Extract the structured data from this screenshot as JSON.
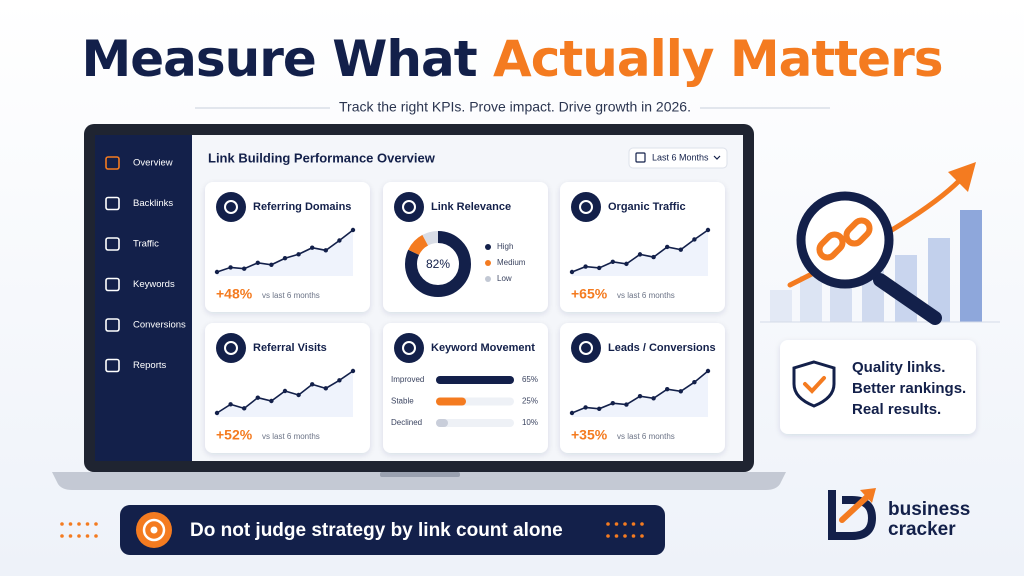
{
  "header": {
    "title_dark": "Measure What",
    "title_orange": "Actually Matters",
    "subtitle": "Track the right KPIs. Prove impact. Drive growth in 2026."
  },
  "sidebar": [
    "Overview",
    "Backlinks",
    "Traffic",
    "Keywords",
    "Conversions",
    "Reports"
  ],
  "dashboard": {
    "title": "Link Building Performance Overview",
    "date_filter": "Last 6 Months",
    "cards": [
      {
        "title": "Referring Domains",
        "change": "+48%",
        "note": "vs last 6 months",
        "sparkline": [
          20,
          27,
          25,
          34,
          31,
          41,
          47,
          57,
          53,
          68,
          84
        ]
      },
      {
        "title": "Link Relevance",
        "donut": {
          "labels": [
            "High",
            "Medium",
            "Low"
          ],
          "colors": [
            "#13204a",
            "#f47b20",
            "#d9dde6"
          ],
          "values": [
            82,
            10,
            8
          ],
          "value_labels": [
            "82%",
            null,
            null
          ]
        }
      },
      {
        "title": "Organic Traffic",
        "change": "+65%",
        "note": "vs last 6 months",
        "sparkline": [
          18,
          26,
          24,
          33,
          30,
          44,
          40,
          55,
          51,
          66,
          80
        ]
      },
      {
        "title": "Referral Visits",
        "change": "+52%",
        "note": "vs last 6 months",
        "sparkline": [
          15,
          28,
          22,
          38,
          33,
          48,
          42,
          58,
          52,
          64,
          78
        ]
      },
      {
        "title": "Keyword Movement",
        "bars": {
          "labels": [
            "Improved",
            "Stable",
            "Declined"
          ],
          "colors": [
            "#13204a",
            "#f47b20",
            "#c9ceda"
          ],
          "values": [
            65,
            25,
            10
          ],
          "value_labels": [
            "65%",
            "25%",
            "10%"
          ]
        }
      },
      {
        "title": "Leads / Conversions",
        "change": "+35%",
        "note": "vs last 6 months",
        "sparkline": [
          16,
          24,
          22,
          30,
          28,
          40,
          37,
          50,
          47,
          60,
          76
        ]
      }
    ]
  },
  "callout": [
    "Quality links.",
    "Better rankings.",
    "Real results."
  ],
  "banner": "Do not judge strategy by link count alone",
  "brand": [
    "business",
    "cracker"
  ]
}
